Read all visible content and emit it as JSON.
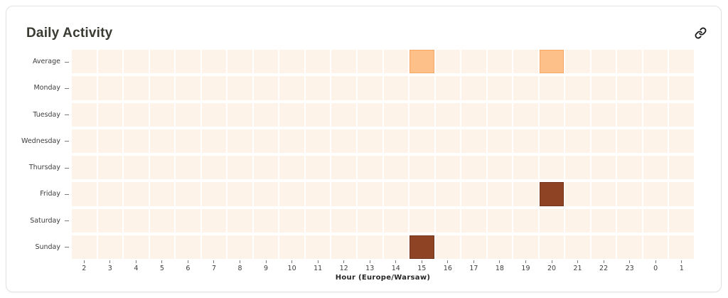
{
  "card": {
    "title": "Daily Activity",
    "icons": {
      "header_action": "link-icon"
    }
  },
  "chart_data": {
    "type": "heatmap",
    "title": "Daily Activity",
    "xlabel": "Hour (Europe/Warsaw)",
    "rows": [
      "Average",
      "Monday",
      "Tuesday",
      "Wednesday",
      "Thursday",
      "Friday",
      "Saturday",
      "Sunday"
    ],
    "x": [
      "2",
      "3",
      "4",
      "5",
      "6",
      "7",
      "8",
      "9",
      "10",
      "11",
      "12",
      "13",
      "14",
      "15",
      "16",
      "17",
      "18",
      "19",
      "20",
      "21",
      "22",
      "23",
      "0",
      "1"
    ],
    "highlights": [
      {
        "row": "Average",
        "hour": "15",
        "level": "mid"
      },
      {
        "row": "Average",
        "hour": "20",
        "level": "mid"
      },
      {
        "row": "Friday",
        "hour": "20",
        "level": "high"
      },
      {
        "row": "Sunday",
        "hour": "15",
        "level": "high"
      }
    ],
    "colors": {
      "empty": "#fdf3e9",
      "mid": "#fcc088",
      "mid_border": "#f6a660",
      "high": "#8e4424",
      "high_border": "#72351b"
    },
    "legend_position": "none",
    "grid": "white-gaps"
  }
}
